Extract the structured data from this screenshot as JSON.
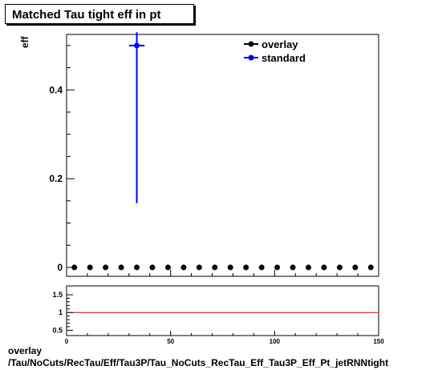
{
  "title": "Matched Tau tight eff in pt",
  "ylabel": "eff",
  "footer": {
    "line1": "overlay",
    "line2": "/Tau/NoCuts/RecTau/Eff/Tau3P/Tau_NoCuts_RecTau_Eff_Tau3P_Eff_Pt_jetRNNtight"
  },
  "legend": {
    "placement": "top-right",
    "items": [
      {
        "label": "overlay",
        "color": "#000000"
      },
      {
        "label": "standard",
        "color": "#0000ff"
      }
    ]
  },
  "chart_data": [
    {
      "type": "scatter",
      "title": "Matched Tau tight eff in pt",
      "ylabel": "eff",
      "xlim": [
        0,
        150
      ],
      "ylim": [
        -0.02,
        0.525
      ],
      "yticks": [
        0,
        0.2,
        0.4
      ],
      "ytick_labels": [
        "0",
        "0.2",
        "0.4"
      ],
      "series": [
        {
          "name": "overlay",
          "color": "#000000",
          "x": [
            3.75,
            11.25,
            18.75,
            26.25,
            33.75,
            41.25,
            48.75,
            56.25,
            63.75,
            71.25,
            78.75,
            86.25,
            93.75,
            101.25,
            108.75,
            116.25,
            123.75,
            131.25,
            138.75,
            146.25
          ],
          "y": [
            0,
            0,
            0,
            0,
            0,
            0,
            0,
            0,
            0,
            0,
            0,
            0,
            0,
            0,
            0,
            0,
            0,
            0,
            0,
            0
          ]
        },
        {
          "name": "standard",
          "color": "#0000ff",
          "x": [
            33.75
          ],
          "y": [
            0.5
          ],
          "xerr": [
            3.75
          ],
          "yerr_low": [
            0.355
          ],
          "yerr_high": [
            0.03
          ]
        }
      ]
    },
    {
      "type": "line",
      "xlim": [
        0,
        150
      ],
      "ylim": [
        0.35,
        1.75
      ],
      "xticks": [
        0,
        50,
        100,
        150
      ],
      "xtick_labels": [
        "0",
        "50",
        "100",
        "150"
      ],
      "yticks": [
        0.5,
        1,
        1.5
      ],
      "ytick_labels": [
        "0.5",
        "1",
        "1.5"
      ],
      "reference_line": {
        "y": 1,
        "color": "#cc0000"
      }
    }
  ]
}
